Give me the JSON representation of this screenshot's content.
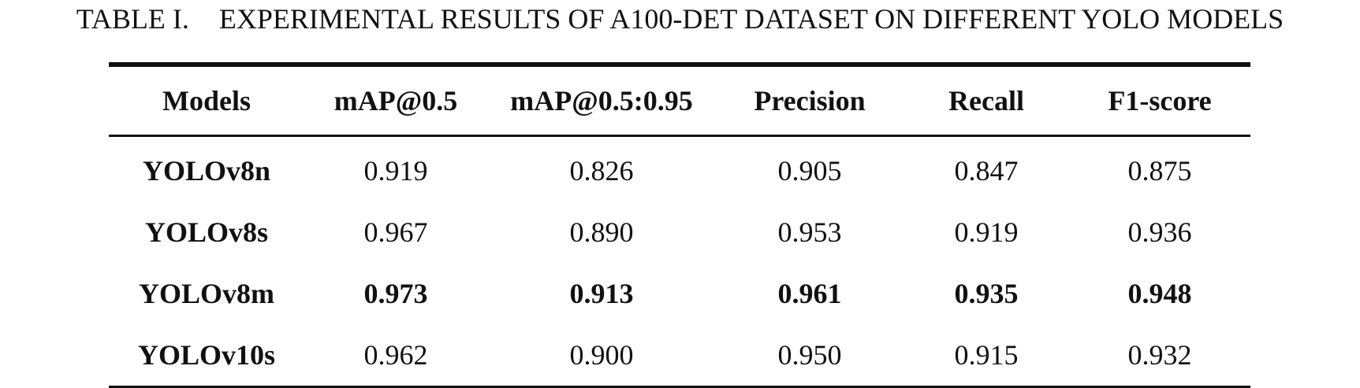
{
  "caption": {
    "label": "TABLE I.",
    "title": "EXPERIMENTAL RESULTS OF A100-DET DATASET ON DIFFERENT YOLO MODELS"
  },
  "table": {
    "headers": [
      "Models",
      "mAP@0.5",
      "mAP@0.5:0.95",
      "Precision",
      "Recall",
      "F1-score"
    ],
    "rows": [
      {
        "model": "YOLOv8n",
        "map50": "0.919",
        "map5095": "0.826",
        "precision": "0.905",
        "recall": "0.847",
        "f1": "0.875",
        "bold": false
      },
      {
        "model": "YOLOv8s",
        "map50": "0.967",
        "map5095": "0.890",
        "precision": "0.953",
        "recall": "0.919",
        "f1": "0.936",
        "bold": false
      },
      {
        "model": "YOLOv8m",
        "map50": "0.973",
        "map5095": "0.913",
        "precision": "0.961",
        "recall": "0.935",
        "f1": "0.948",
        "bold": true
      },
      {
        "model": "YOLOv10s",
        "map50": "0.962",
        "map5095": "0.900",
        "precision": "0.950",
        "recall": "0.915",
        "f1": "0.932",
        "bold": false
      }
    ]
  }
}
